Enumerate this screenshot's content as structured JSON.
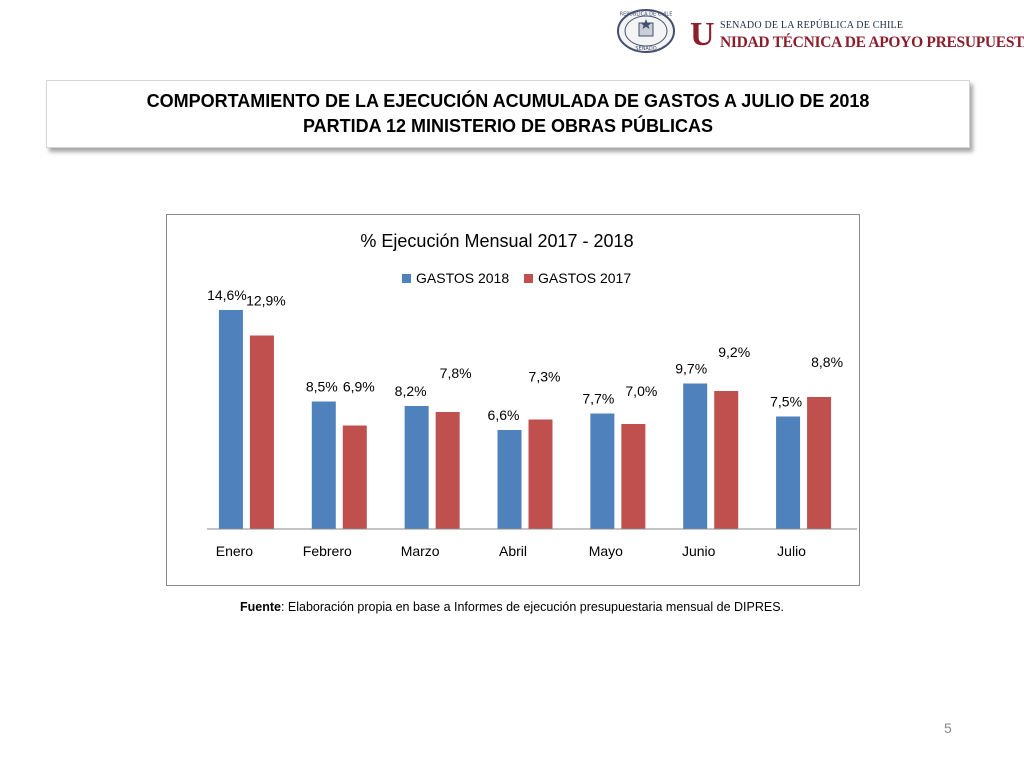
{
  "header": {
    "institution_top": "SENADO DE LA REPÚBLICA DE CHILE",
    "institution_letter": "U",
    "institution_bottom": "NIDAD TÉCNICA DE APOYO PRESUPUESTARIO",
    "seal_top_text": "REPÚBLICA DE CHILE",
    "seal_bottom_text": "SENADO"
  },
  "title": {
    "line1": "COMPORTAMIENTO DE LA EJECUCIÓN ACUMULADA DE GASTOS A JULIO DE 2018",
    "line2": "PARTIDA 12 MINISTERIO DE OBRAS PÚBLICAS"
  },
  "chart_data": {
    "type": "bar",
    "title": "% Ejecución Mensual 2017 - 2018",
    "categories": [
      "Enero",
      "Febrero",
      "Marzo",
      "Abril",
      "Mayo",
      "Junio",
      "Julio"
    ],
    "series": [
      {
        "name": "GASTOS 2018",
        "color": "#4f81bd",
        "values": [
          14.6,
          8.5,
          8.2,
          6.6,
          7.7,
          9.7,
          7.5
        ],
        "labels": [
          "14,6%",
          "8,5%",
          "8,2%",
          "6,6%",
          "7,7%",
          "9,7%",
          "7,5%"
        ]
      },
      {
        "name": "GASTOS 2017",
        "color": "#c0504d",
        "values": [
          12.9,
          6.9,
          7.8,
          7.3,
          7.0,
          9.2,
          8.8
        ],
        "labels": [
          "12,9%",
          "6,9%",
          "7,8%",
          "7,3%",
          "7,0%",
          "9,2%",
          "8,8%"
        ]
      }
    ],
    "ylim": [
      0,
      16
    ],
    "xlabel": "",
    "ylabel": "",
    "legend": "top-center",
    "grid": false
  },
  "source": {
    "label": "Fuente",
    "text": ": Elaboración propia en base  a Informes de ejecución presupuestaria mensual de DIPRES."
  },
  "page_number": "5"
}
